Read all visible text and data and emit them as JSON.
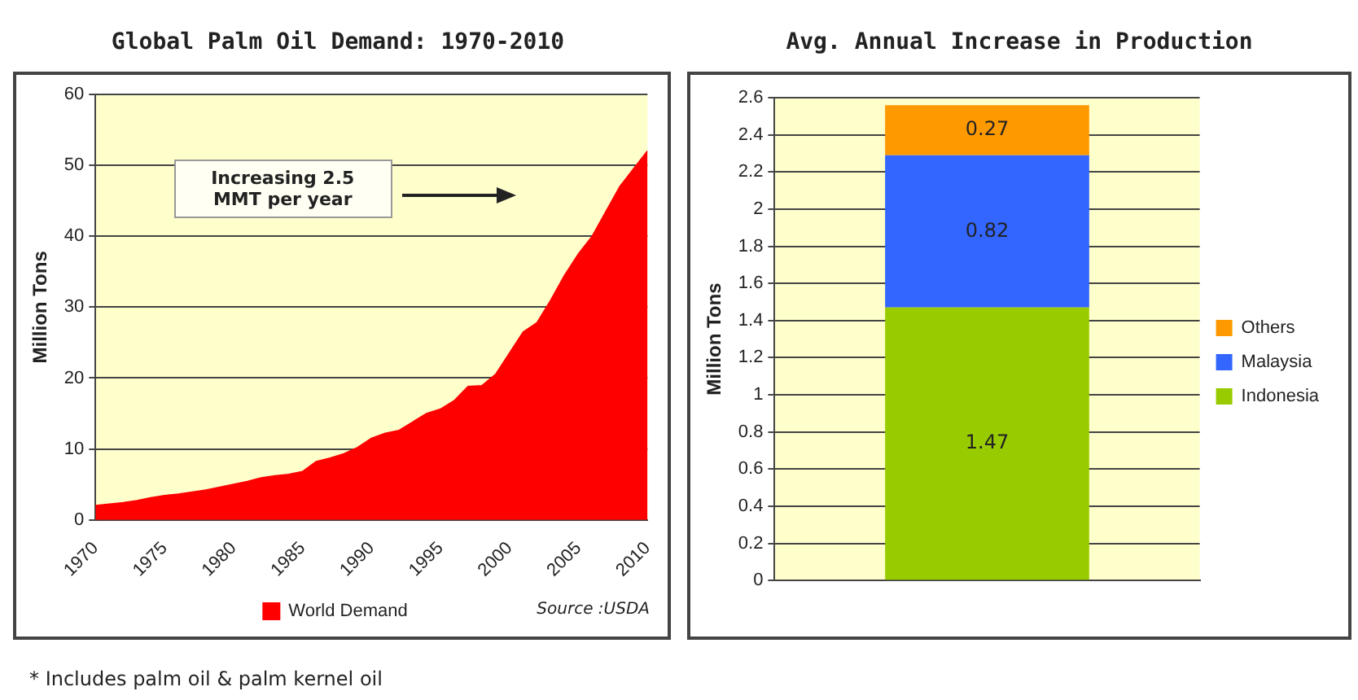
{
  "chart_data": [
    {
      "type": "area",
      "title": "Global Palm Oil Demand: 1970-2010",
      "ylabel": "Million Tons",
      "x": [
        1970,
        1971,
        1972,
        1973,
        1974,
        1975,
        1976,
        1977,
        1978,
        1979,
        1980,
        1981,
        1982,
        1983,
        1984,
        1985,
        1986,
        1987,
        1988,
        1989,
        1990,
        1991,
        1992,
        1993,
        1994,
        1995,
        1996,
        1997,
        1998,
        1999,
        2000,
        2001,
        2002,
        2003,
        2004,
        2005,
        2006,
        2007,
        2008,
        2009,
        2010
      ],
      "series": [
        {
          "name": "World Demand",
          "color": "#ff0000",
          "values": [
            2.0,
            2.2,
            2.4,
            2.7,
            3.1,
            3.4,
            3.6,
            3.9,
            4.2,
            4.6,
            5.0,
            5.4,
            5.9,
            6.2,
            6.4,
            6.8,
            8.2,
            8.7,
            9.3,
            10.2,
            11.5,
            12.2,
            12.6,
            13.8,
            15.0,
            15.6,
            16.8,
            18.8,
            18.9,
            20.5,
            23.5,
            26.5,
            27.8,
            31.0,
            34.5,
            37.5,
            40.0,
            43.5,
            47.0,
            49.5,
            52.0
          ]
        }
      ],
      "xlim": [
        1970,
        2010
      ],
      "xticks": [
        1970,
        1975,
        1980,
        1985,
        1990,
        1995,
        2000,
        2005,
        2010
      ],
      "ylim": [
        0,
        60
      ],
      "yticks": [
        0,
        10,
        20,
        30,
        40,
        50,
        60
      ],
      "grid": "y",
      "legend": "bottom",
      "marker": "none",
      "annotations": [
        "Increasing 2.5 MMT per year",
        "Source :USDA",
        "* Includes palm oil & palm kernel oil"
      ]
    },
    {
      "type": "bar",
      "title": "Avg. Annual Increase in Production",
      "ylabel": "Million Tons",
      "categories": [
        null
      ],
      "stacked": true,
      "series": [
        {
          "name": "Indonesia",
          "color": "#99cc00",
          "values": [
            1.47
          ]
        },
        {
          "name": "Malaysia",
          "color": "#3366ff",
          "values": [
            0.82
          ]
        },
        {
          "name": "Others",
          "color": "#ff9900",
          "values": [
            0.27
          ]
        }
      ],
      "ylim": [
        0,
        2.6
      ],
      "yticks": [
        0,
        0.2,
        0.4,
        0.6,
        0.8,
        1,
        1.2,
        1.4,
        1.6,
        1.8,
        2,
        2.2,
        2.4,
        2.6
      ],
      "grid": "y",
      "legend": "right",
      "data_labels": true
    }
  ]
}
